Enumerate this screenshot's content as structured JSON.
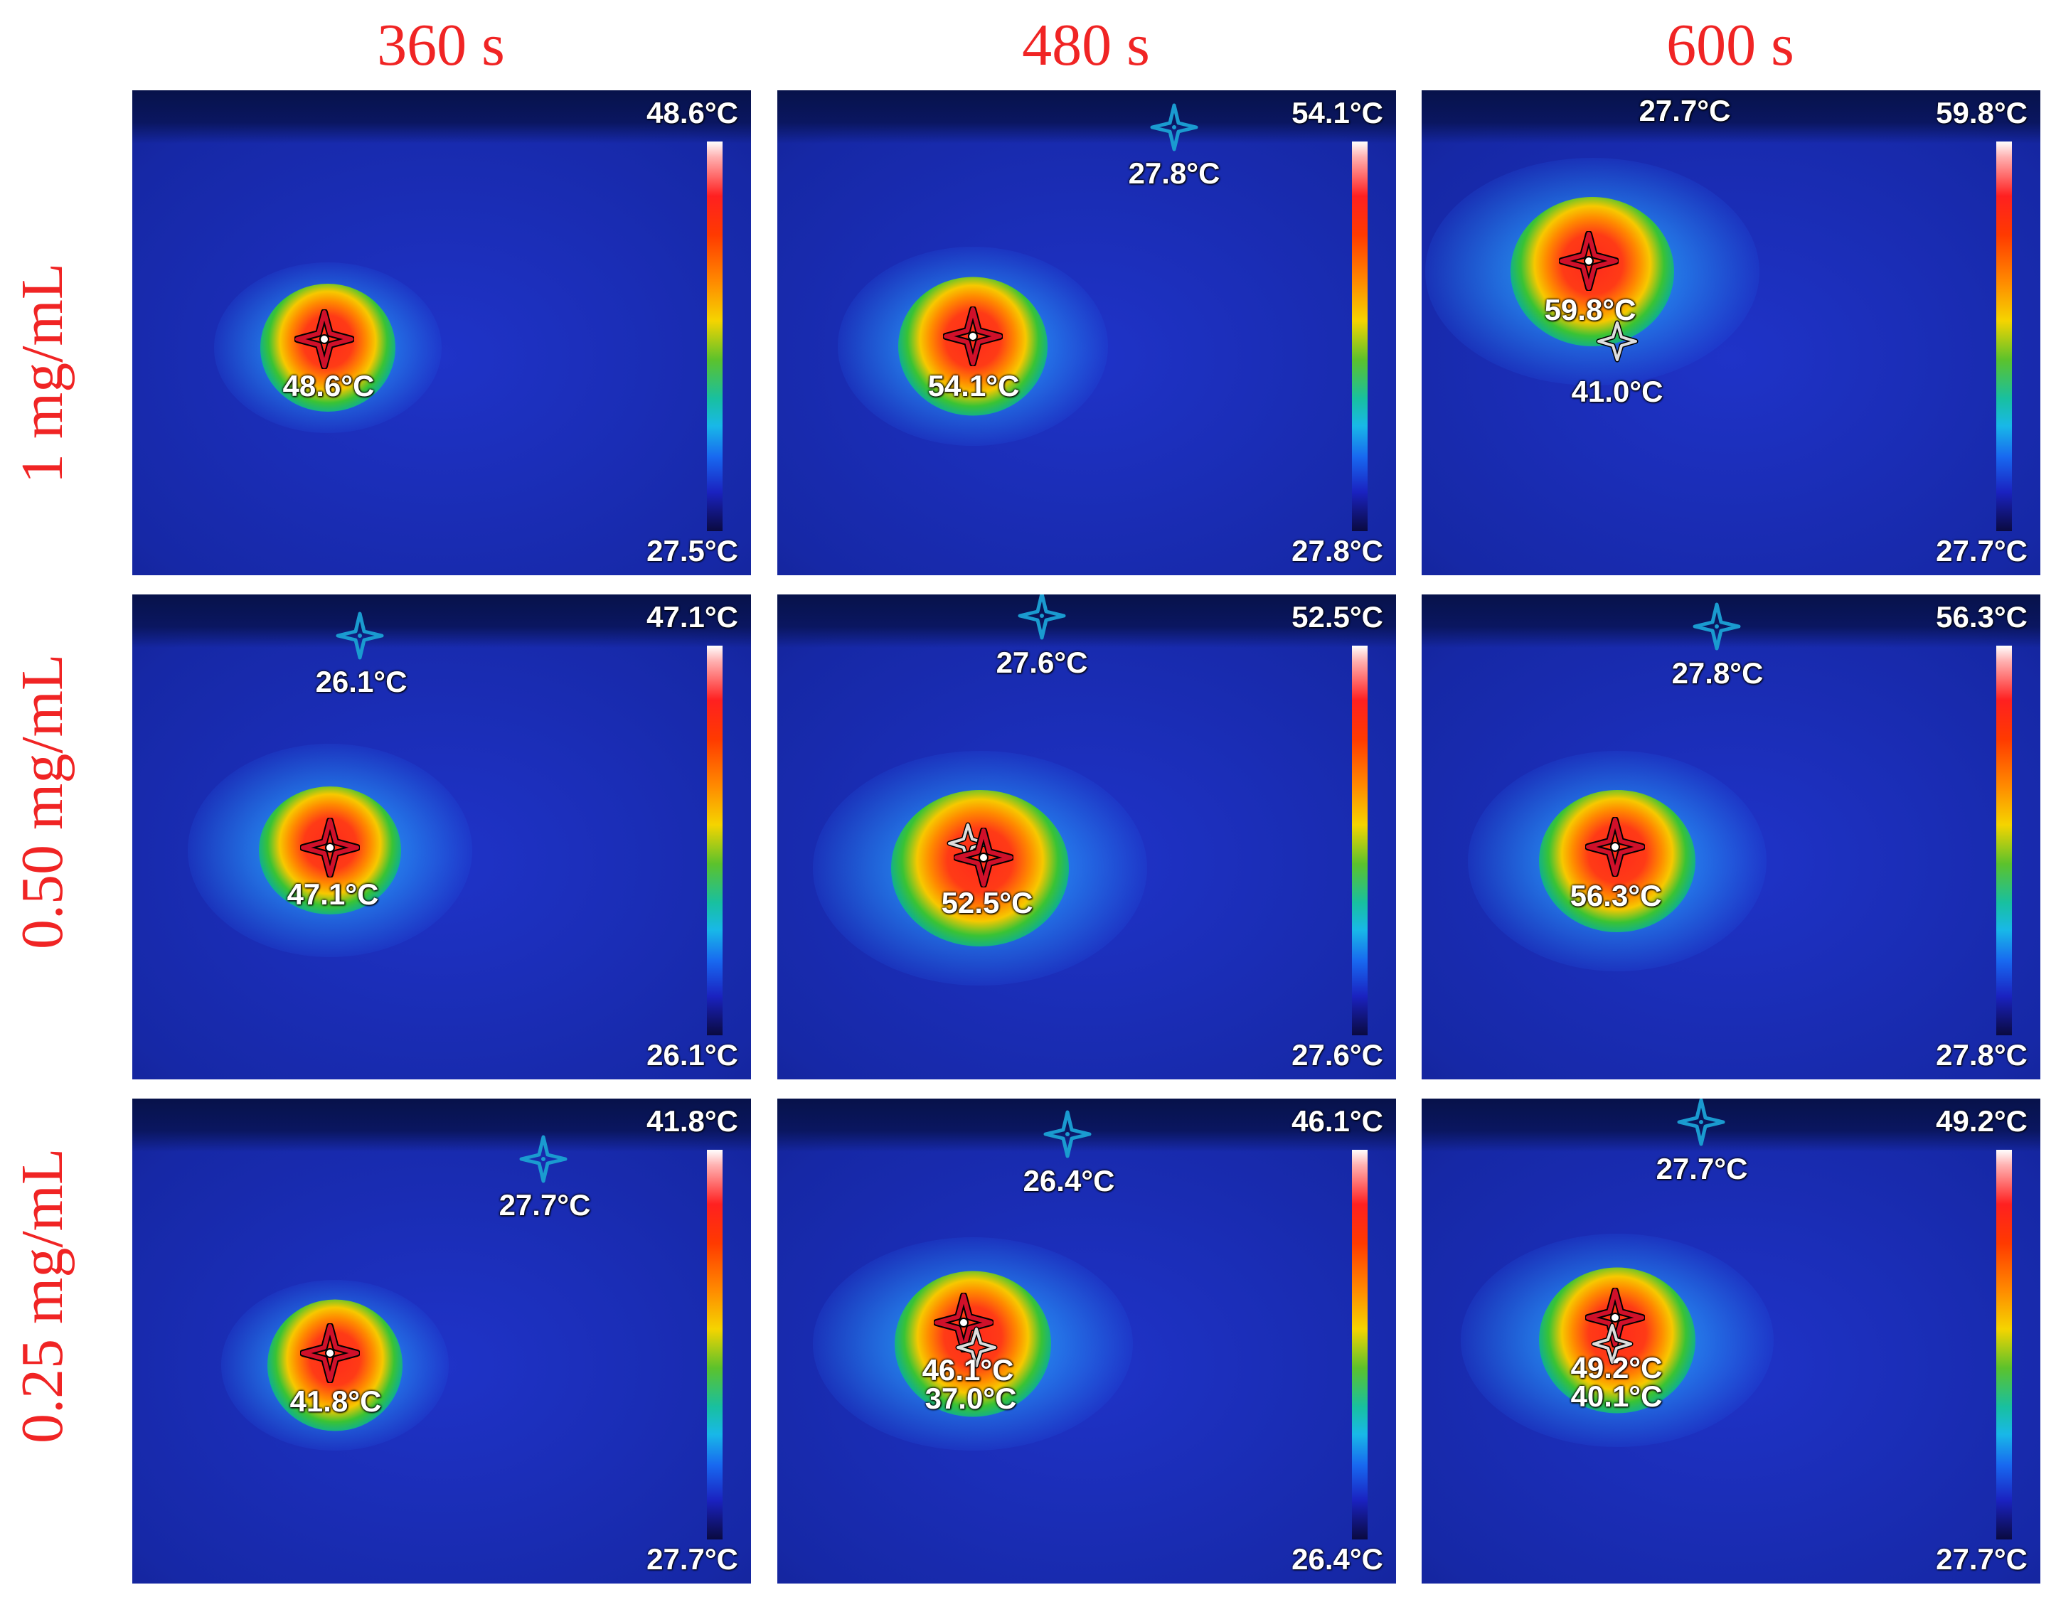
{
  "columns": [
    {
      "label": "360 s"
    },
    {
      "label": "480 s"
    },
    {
      "label": "600 s"
    }
  ],
  "rows": [
    {
      "label": "1 mg/mL"
    },
    {
      "label": "0.50 mg/mL"
    },
    {
      "label": "0.25 mg/mL"
    }
  ],
  "colors": {
    "header_text": "#f02424",
    "background_blue": "#1628a6",
    "crosshair_blue": "#1a9bd0",
    "crosshair_red": "#c0001a"
  },
  "panels": [
    {
      "scale_max": "48.6°C",
      "scale_min": "27.5°C",
      "hot_temp": "48.6°C"
    },
    {
      "scale_max": "54.1°C",
      "scale_min": "27.8°C",
      "hot_temp": "54.1°C",
      "cold_temp": "27.8°C"
    },
    {
      "scale_max": "59.8°C",
      "scale_min": "27.7°C",
      "hot_temp": "59.8°C",
      "second_temp": "41.0°C",
      "cold_temp": "27.7°C"
    },
    {
      "scale_max": "47.1°C",
      "scale_min": "26.1°C",
      "hot_temp": "47.1°C",
      "cold_temp": "26.1°C"
    },
    {
      "scale_max": "52.5°C",
      "scale_min": "27.6°C",
      "hot_temp": "52.5°C",
      "cold_temp": "27.6°C"
    },
    {
      "scale_max": "56.3°C",
      "scale_min": "27.8°C",
      "hot_temp": "56.3°C",
      "cold_temp": "27.8°C"
    },
    {
      "scale_max": "41.8°C",
      "scale_min": "27.7°C",
      "hot_temp": "41.8°C",
      "cold_temp": "27.7°C"
    },
    {
      "scale_max": "46.1°C",
      "scale_min": "26.4°C",
      "hot_temp": "46.1°C",
      "second_temp": "37.0°C",
      "cold_temp": "26.4°C"
    },
    {
      "scale_max": "49.2°C",
      "scale_min": "27.7°C",
      "hot_temp": "49.2°C",
      "second_temp": "40.1°C",
      "cold_temp": "27.7°C"
    }
  ]
}
